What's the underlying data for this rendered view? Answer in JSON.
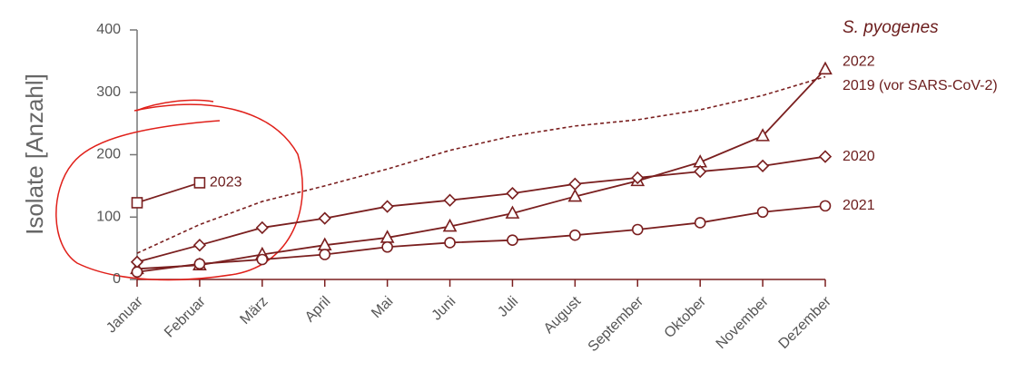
{
  "chart_data": {
    "type": "line",
    "title": "S. pyogenes",
    "y_label": "Isolate [Anzahl]",
    "categories": [
      "Januar",
      "Februar",
      "März",
      "April",
      "Mai",
      "Juni",
      "Juli",
      "August",
      "September",
      "Oktober",
      "November",
      "Dezember"
    ],
    "ylim": [
      0,
      400
    ],
    "yticks": [
      0,
      100,
      200,
      300,
      400
    ],
    "series": [
      {
        "name": "2023",
        "color": "#7a1f1f",
        "marker": "square",
        "dashed": false,
        "values": [
          123,
          155,
          null,
          null,
          null,
          null,
          null,
          null,
          null,
          null,
          null,
          null
        ]
      },
      {
        "name": "2022",
        "color": "#7a1f1f",
        "marker": "triangle",
        "dashed": false,
        "values": [
          17,
          23,
          40,
          55,
          67,
          85,
          106,
          133,
          158,
          188,
          230,
          337
        ]
      },
      {
        "name": "2019 (vor SARS-CoV-2)",
        "color": "#7a1f1f",
        "marker": "none",
        "dashed": true,
        "values": [
          42,
          88,
          125,
          150,
          177,
          207,
          230,
          246,
          256,
          272,
          295,
          325
        ]
      },
      {
        "name": "2020",
        "color": "#7a1f1f",
        "marker": "diamond",
        "dashed": false,
        "values": [
          28,
          55,
          83,
          98,
          117,
          127,
          138,
          153,
          163,
          173,
          182,
          197
        ]
      },
      {
        "name": "2021",
        "color": "#7a1f1f",
        "marker": "circle",
        "dashed": false,
        "values": [
          12,
          25,
          32,
          40,
          52,
          59,
          63,
          71,
          80,
          91,
          108,
          118
        ]
      }
    ]
  }
}
